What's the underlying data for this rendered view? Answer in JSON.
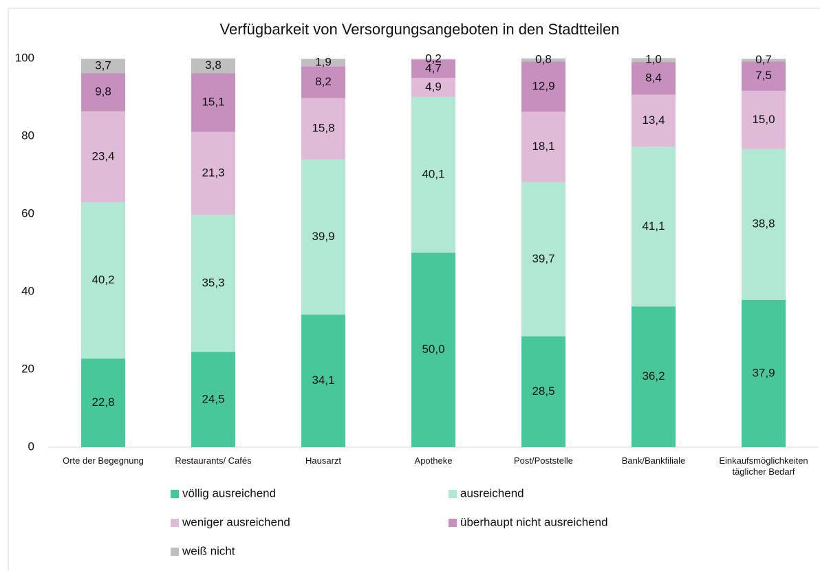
{
  "chart_data": {
    "type": "stacked_bar",
    "title": "Verfügbarkeit von Versorgungsangeboten in den Stadtteilen",
    "categories": [
      "Orte der Begegnung",
      "Restaurants/ Cafés",
      "Hausarzt",
      "Apotheke",
      "Post/Poststelle",
      "Bank/Bankfiliale",
      "Einkaufsmöglichkeiten täglicher Bedarf"
    ],
    "series": [
      {
        "name": "völlig ausreichend",
        "color": "#48c89a",
        "values": [
          22.8,
          24.5,
          34.1,
          50.0,
          28.5,
          36.2,
          37.9
        ],
        "value_labels": [
          "22,8",
          "24,5",
          "34,1",
          "50,0",
          "28,5",
          "36,2",
          "37,9"
        ]
      },
      {
        "name": "ausreichend",
        "color": "#b0e8d4",
        "values": [
          40.2,
          35.3,
          39.9,
          40.1,
          39.7,
          41.1,
          38.8
        ],
        "value_labels": [
          "40,2",
          "35,3",
          "39,9",
          "40,1",
          "39,7",
          "41,1",
          "38,8"
        ]
      },
      {
        "name": "weniger ausreichend",
        "color": "#dfbbd8",
        "values": [
          23.4,
          21.3,
          15.8,
          4.9,
          18.1,
          13.4,
          15.0
        ],
        "value_labels": [
          "23,4",
          "21,3",
          "15,8",
          "4,9",
          "18,1",
          "13,4",
          "15,0"
        ]
      },
      {
        "name": "überhaupt nicht ausreichend",
        "color": "#c68fbd",
        "values": [
          9.8,
          15.1,
          8.2,
          4.7,
          12.9,
          8.4,
          7.5
        ],
        "value_labels": [
          "9,8",
          "15,1",
          "8,2",
          "4,7",
          "12,9",
          "8,4",
          "7,5"
        ]
      },
      {
        "name": "weiß nicht",
        "color": "#bfbfbf",
        "values": [
          3.7,
          3.8,
          1.9,
          0.2,
          0.8,
          1.0,
          0.7
        ],
        "value_labels": [
          "3,7",
          "3,8",
          "1,9",
          "0,2",
          "0,8",
          "1,0",
          "0,7"
        ]
      }
    ],
    "ylim": [
      0,
      100
    ],
    "yticks": [
      0,
      20,
      40,
      60,
      80,
      100
    ],
    "grid": false,
    "legend": "bottom"
  }
}
